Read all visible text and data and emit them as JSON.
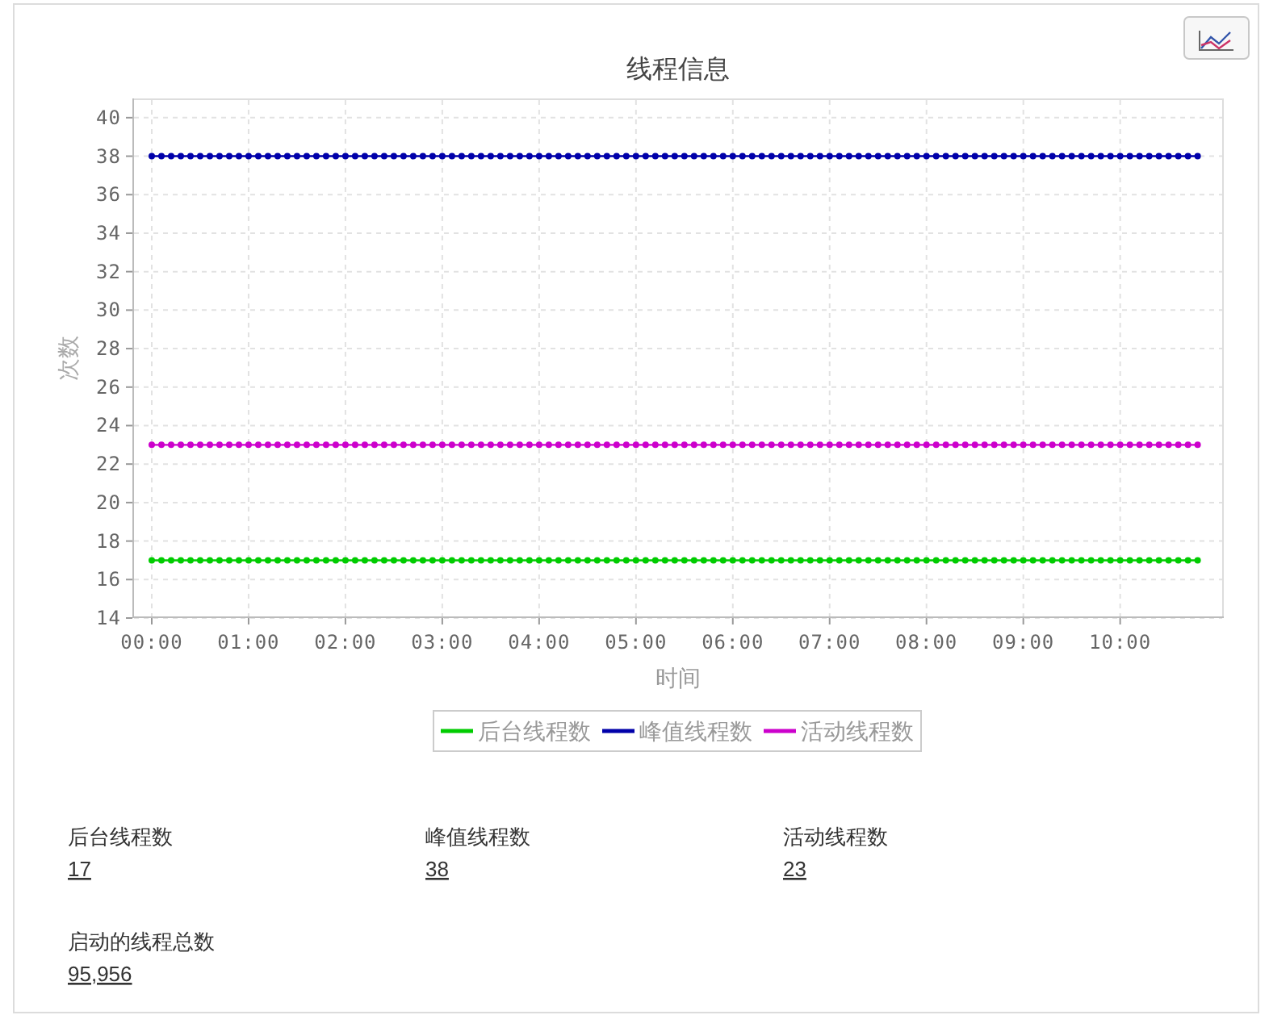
{
  "chart_data": [
    {
      "type": "line",
      "title": "线程信息",
      "xlabel": "时间",
      "ylabel": "次数",
      "x": [
        0,
        0.1,
        0.2,
        0.3,
        0.4,
        0.5,
        0.6,
        0.7,
        0.8,
        0.9,
        1,
        1.1,
        1.2,
        1.3,
        1.4,
        1.5,
        1.6,
        1.7,
        1.8,
        1.9,
        2,
        2.1,
        2.2,
        2.3,
        2.4,
        2.5,
        2.6,
        2.7,
        2.8,
        2.9,
        3,
        3.1,
        3.2,
        3.3,
        3.4,
        3.5,
        3.6,
        3.7,
        3.8,
        3.9,
        4,
        4.1,
        4.2,
        4.3,
        4.4,
        4.5,
        4.6,
        4.7,
        4.8,
        4.9,
        5,
        5.1,
        5.2,
        5.3,
        5.4,
        5.5,
        5.6,
        5.7,
        5.8,
        5.9,
        6,
        6.1,
        6.2,
        6.3,
        6.4,
        6.5,
        6.6,
        6.7,
        6.8,
        6.9,
        7,
        7.1,
        7.2,
        7.3,
        7.4,
        7.5,
        7.6,
        7.7,
        7.8,
        7.9,
        8,
        8.1,
        8.2,
        8.3,
        8.4,
        8.5,
        8.6,
        8.7,
        8.8,
        8.9,
        9,
        9.1,
        9.2,
        9.3,
        9.4,
        9.5,
        9.6,
        9.7,
        9.8,
        9.9,
        10,
        10.1,
        10.2,
        10.3,
        10.4,
        10.5,
        10.6,
        10.7,
        10.8
      ],
      "series": [
        {
          "name": "后台线程数",
          "color": "#00cc00",
          "values": [
            17,
            17,
            17,
            17,
            17,
            17,
            17,
            17,
            17,
            17,
            17,
            17,
            17,
            17,
            17,
            17,
            17,
            17,
            17,
            17,
            17,
            17,
            17,
            17,
            17,
            17,
            17,
            17,
            17,
            17,
            17,
            17,
            17,
            17,
            17,
            17,
            17,
            17,
            17,
            17,
            17,
            17,
            17,
            17,
            17,
            17,
            17,
            17,
            17,
            17,
            17,
            17,
            17,
            17,
            17,
            17,
            17,
            17,
            17,
            17,
            17,
            17,
            17,
            17,
            17,
            17,
            17,
            17,
            17,
            17,
            17,
            17,
            17,
            17,
            17,
            17,
            17,
            17,
            17,
            17,
            17,
            17,
            17,
            17,
            17,
            17,
            17,
            17,
            17,
            17,
            17,
            17,
            17,
            17,
            17,
            17,
            17,
            17,
            17,
            17,
            17,
            17,
            17,
            17,
            17,
            17,
            17,
            17,
            17
          ]
        },
        {
          "name": "峰值线程数",
          "color": "#0000aa",
          "values": [
            38,
            38,
            38,
            38,
            38,
            38,
            38,
            38,
            38,
            38,
            38,
            38,
            38,
            38,
            38,
            38,
            38,
            38,
            38,
            38,
            38,
            38,
            38,
            38,
            38,
            38,
            38,
            38,
            38,
            38,
            38,
            38,
            38,
            38,
            38,
            38,
            38,
            38,
            38,
            38,
            38,
            38,
            38,
            38,
            38,
            38,
            38,
            38,
            38,
            38,
            38,
            38,
            38,
            38,
            38,
            38,
            38,
            38,
            38,
            38,
            38,
            38,
            38,
            38,
            38,
            38,
            38,
            38,
            38,
            38,
            38,
            38,
            38,
            38,
            38,
            38,
            38,
            38,
            38,
            38,
            38,
            38,
            38,
            38,
            38,
            38,
            38,
            38,
            38,
            38,
            38,
            38,
            38,
            38,
            38,
            38,
            38,
            38,
            38,
            38,
            38,
            38,
            38,
            38,
            38,
            38,
            38,
            38,
            38
          ]
        },
        {
          "name": "活动线程数",
          "color": "#cc00cc",
          "values": [
            23,
            23,
            23,
            23,
            23,
            23,
            23,
            23,
            23,
            23,
            23,
            23,
            23,
            23,
            23,
            23,
            23,
            23,
            23,
            23,
            23,
            23,
            23,
            23,
            23,
            23,
            23,
            23,
            23,
            23,
            23,
            23,
            23,
            23,
            23,
            23,
            23,
            23,
            23,
            23,
            23,
            23,
            23,
            23,
            23,
            23,
            23,
            23,
            23,
            23,
            23,
            23,
            23,
            23,
            23,
            23,
            23,
            23,
            23,
            23,
            23,
            23,
            23,
            23,
            23,
            23,
            23,
            23,
            23,
            23,
            23,
            23,
            23,
            23,
            23,
            23,
            23,
            23,
            23,
            23,
            23,
            23,
            23,
            23,
            23,
            23,
            23,
            23,
            23,
            23,
            23,
            23,
            23,
            23,
            23,
            23,
            23,
            23,
            23,
            23,
            23,
            23,
            23,
            23,
            23,
            23,
            23,
            23,
            23
          ]
        }
      ],
      "xlim": [
        -0.2,
        11.07
      ],
      "xticks": [
        {
          "value": 0,
          "label": "00:00"
        },
        {
          "value": 1,
          "label": "01:00"
        },
        {
          "value": 2,
          "label": "02:00"
        },
        {
          "value": 3,
          "label": "03:00"
        },
        {
          "value": 4,
          "label": "04:00"
        },
        {
          "value": 5,
          "label": "05:00"
        },
        {
          "value": 6,
          "label": "06:00"
        },
        {
          "value": 7,
          "label": "07:00"
        },
        {
          "value": 8,
          "label": "08:00"
        },
        {
          "value": 9,
          "label": "09:00"
        },
        {
          "value": 10,
          "label": "10:00"
        }
      ],
      "ylim": [
        14,
        41
      ],
      "yticks": [
        14,
        16,
        18,
        20,
        22,
        24,
        26,
        28,
        30,
        32,
        34,
        36,
        38,
        40
      ],
      "grid": true,
      "legend": "bottom",
      "marker": "circle",
      "line_style": "solid"
    },
    {
      "type": "other",
      "annotations": [
        "后台线程数",
        "17",
        "峰值线程数",
        "38",
        "活动线程数",
        "23",
        "启动的线程总数",
        "95,956"
      ]
    }
  ]
}
